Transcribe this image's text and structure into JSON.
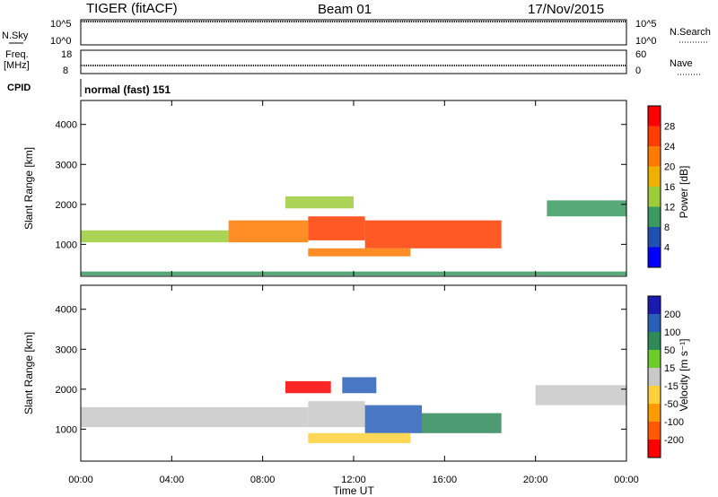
{
  "header": {
    "title": "TIGER (fitACF)",
    "beam": "Beam 01",
    "date": "17/Nov/2015"
  },
  "strips": {
    "nsky_label": "N.Sky",
    "nsky_top": "10^5",
    "nsky_bottom": "10^0",
    "nsearch_label": "N.Search",
    "nsearch_top": "10^5",
    "nsearch_bottom": "10^0",
    "freq_label_1": "Freq.",
    "freq_label_2": "[MHz]",
    "freq_top": "18",
    "freq_bottom": "8",
    "nave_label": "Nave",
    "nave_top": "60",
    "nave_bottom": "0",
    "cpid_label": "CPID",
    "cpid_value": "normal (fast) 151"
  },
  "colorbars": {
    "power": {
      "label": "Power [dB]",
      "ticks": [
        "28",
        "24",
        "20",
        "16",
        "12",
        "8",
        "4"
      ],
      "colors": [
        "#ff0000",
        "#ff3d00",
        "#ff7a00",
        "#f0b000",
        "#9ccc3a",
        "#3a9a60",
        "#2050b0",
        "#0000ff"
      ]
    },
    "velocity": {
      "label": "Velocity [m s⁻¹]",
      "ticks": [
        "200",
        "100",
        "50",
        "15",
        "-15",
        "-50",
        "-100",
        "-200"
      ],
      "colors": [
        "#1a1ab0",
        "#2a5fb8",
        "#2f8a5a",
        "#6ccc2a",
        "#c8c8c8",
        "#ffd03a",
        "#ff9a00",
        "#ff5a00",
        "#ff0000"
      ]
    }
  },
  "chart_data": [
    {
      "type": "heatmap",
      "panel": "power",
      "ylabel": "Slant Range [km]",
      "xlabel": "Time UT",
      "x_ticks": [
        "00:00",
        "04:00",
        "08:00",
        "12:00",
        "16:00",
        "20:00",
        "00:00"
      ],
      "y_ticks": [
        1000,
        2000,
        3000,
        4000
      ],
      "ylim": [
        200,
        4600
      ],
      "xlim_hours": [
        0,
        24
      ],
      "colorbar": "Power [dB]",
      "clim": [
        0,
        32
      ],
      "regions": [
        {
          "t0": 0.0,
          "t1": 6.5,
          "r0": 1050,
          "r1": 1350,
          "value": 12
        },
        {
          "t0": 6.5,
          "t1": 10.0,
          "r0": 1050,
          "r1": 1600,
          "value": 20
        },
        {
          "t0": 10.0,
          "t1": 12.5,
          "r0": 1100,
          "r1": 1700,
          "value": 24
        },
        {
          "t0": 12.5,
          "t1": 18.5,
          "r0": 900,
          "r1": 1600,
          "value": 26
        },
        {
          "t0": 10.0,
          "t1": 14.5,
          "r0": 700,
          "r1": 900,
          "value": 22
        },
        {
          "t0": 9.0,
          "t1": 12.0,
          "r0": 1900,
          "r1": 2200,
          "value": 14
        },
        {
          "t0": 20.5,
          "t1": 24.0,
          "r0": 1700,
          "r1": 2100,
          "value": 8
        },
        {
          "t0": 0.0,
          "t1": 24.0,
          "r0": 220,
          "r1": 320,
          "value": 8
        }
      ]
    },
    {
      "type": "heatmap",
      "panel": "velocity",
      "ylabel": "Slant Range [km]",
      "xlabel": "Time UT",
      "x_ticks": [
        "00:00",
        "04:00",
        "08:00",
        "12:00",
        "16:00",
        "20:00",
        "00:00"
      ],
      "y_ticks": [
        1000,
        2000,
        3000,
        4000
      ],
      "ylim": [
        200,
        4600
      ],
      "xlim_hours": [
        0,
        24
      ],
      "colorbar": "Velocity [m s⁻¹]",
      "clim": [
        -200,
        200
      ],
      "regions": [
        {
          "t0": 0.0,
          "t1": 10.0,
          "r0": 1050,
          "r1": 1550,
          "value": 0
        },
        {
          "t0": 10.0,
          "t1": 12.5,
          "r0": 1050,
          "r1": 1700,
          "value": 0
        },
        {
          "t0": 12.5,
          "t1": 15.0,
          "r0": 900,
          "r1": 1600,
          "value": 150
        },
        {
          "t0": 15.0,
          "t1": 18.5,
          "r0": 900,
          "r1": 1400,
          "value": 80
        },
        {
          "t0": 10.0,
          "t1": 14.5,
          "r0": 650,
          "r1": 900,
          "value": -40
        },
        {
          "t0": 9.0,
          "t1": 11.0,
          "r0": 1900,
          "r1": 2200,
          "value": -200
        },
        {
          "t0": 11.5,
          "t1": 13.0,
          "r0": 1900,
          "r1": 2300,
          "value": 150
        },
        {
          "t0": 20.0,
          "t1": 24.0,
          "r0": 1600,
          "r1": 2100,
          "value": -10
        }
      ]
    }
  ]
}
